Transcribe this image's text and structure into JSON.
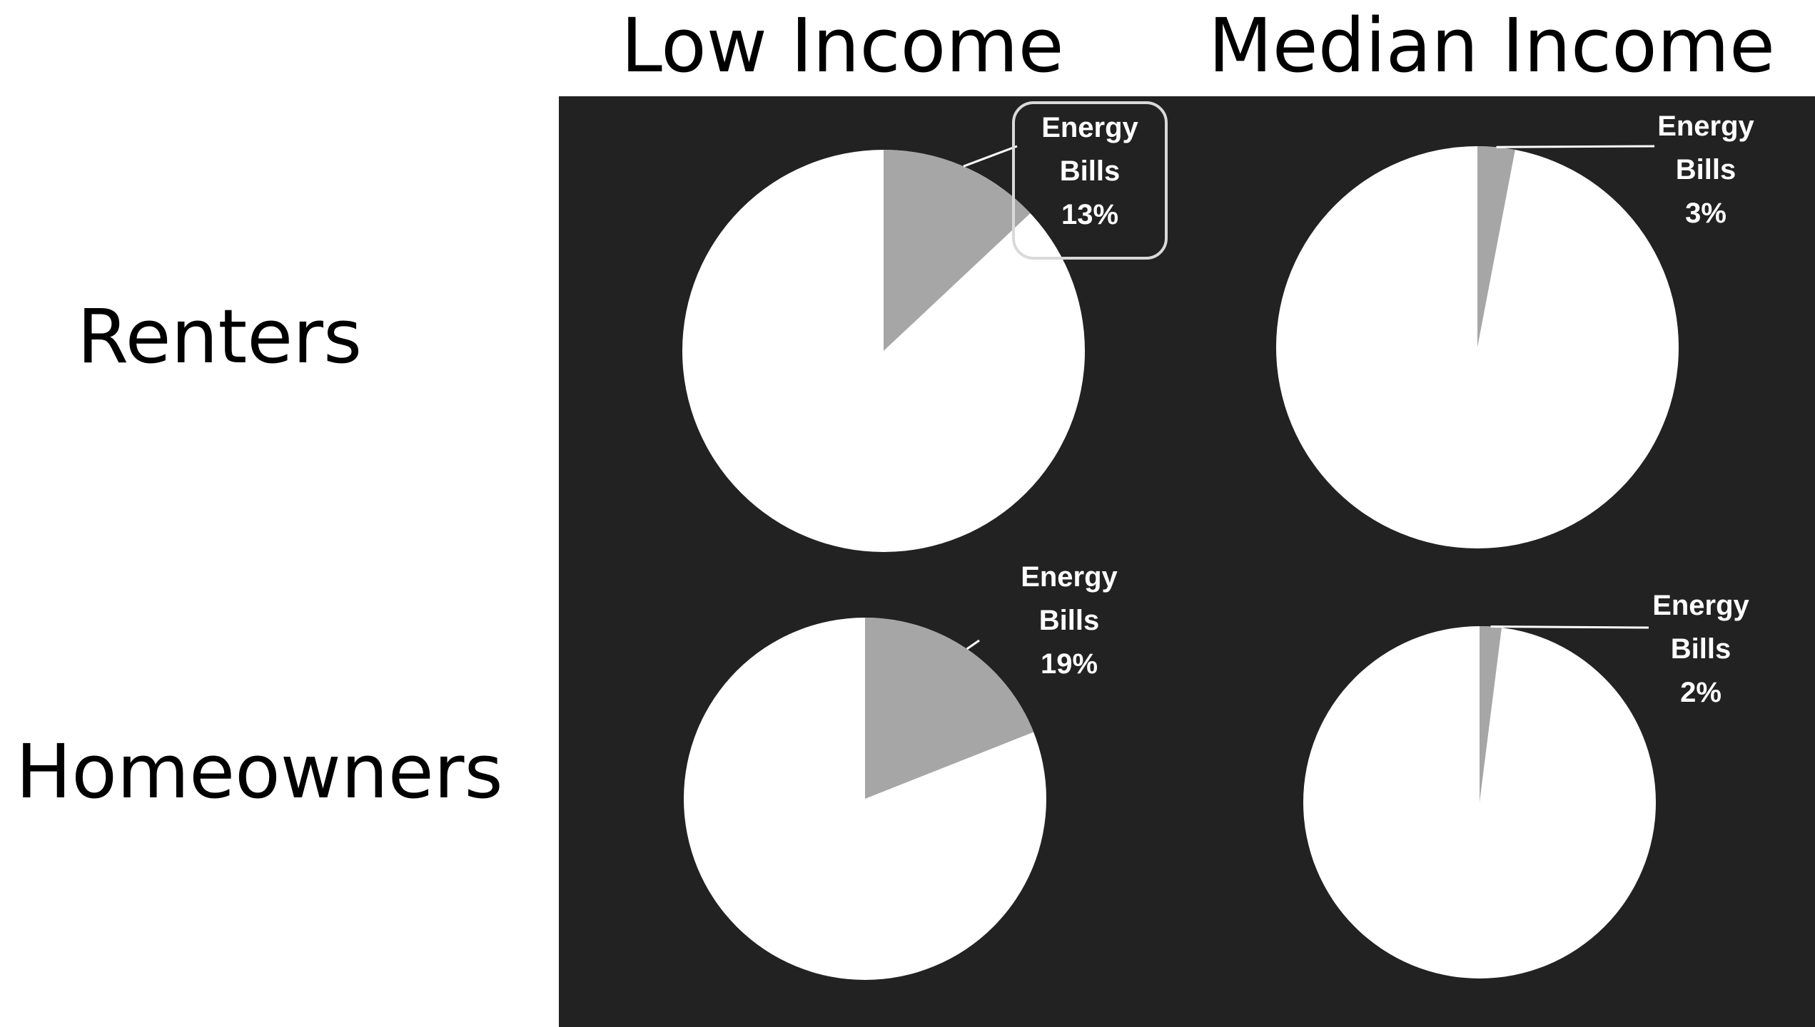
{
  "columns": [
    "Low Income",
    "Median Income"
  ],
  "rows": [
    "Renters",
    "Homeowners"
  ],
  "colors": {
    "background": "#ffffff",
    "panel": "#222222",
    "pie_fill": "#ffffff",
    "slice_fill": "#a6a6a6",
    "text": "#000000",
    "label_text": "#ffffff"
  },
  "chart_data": [
    {
      "type": "pie",
      "row": "Renters",
      "column": "Low Income",
      "slices": [
        {
          "name": "Energy Bills",
          "value": 13
        }
      ],
      "label_lines": [
        "Energy",
        "Bills",
        "13%"
      ],
      "highlighted": true
    },
    {
      "type": "pie",
      "row": "Renters",
      "column": "Median Income",
      "slices": [
        {
          "name": "Energy Bills",
          "value": 3
        }
      ],
      "label_lines": [
        "Energy",
        "Bills",
        "3%"
      ],
      "highlighted": false
    },
    {
      "type": "pie",
      "row": "Homeowners",
      "column": "Low Income",
      "slices": [
        {
          "name": "Energy Bills",
          "value": 19
        }
      ],
      "label_lines": [
        "Energy",
        "Bills",
        "19%"
      ],
      "highlighted": false
    },
    {
      "type": "pie",
      "row": "Homeowners",
      "column": "Median Income",
      "slices": [
        {
          "name": "Energy Bills",
          "value": 2
        }
      ],
      "label_lines": [
        "Energy",
        "Bills",
        "2%"
      ],
      "highlighted": false
    }
  ]
}
